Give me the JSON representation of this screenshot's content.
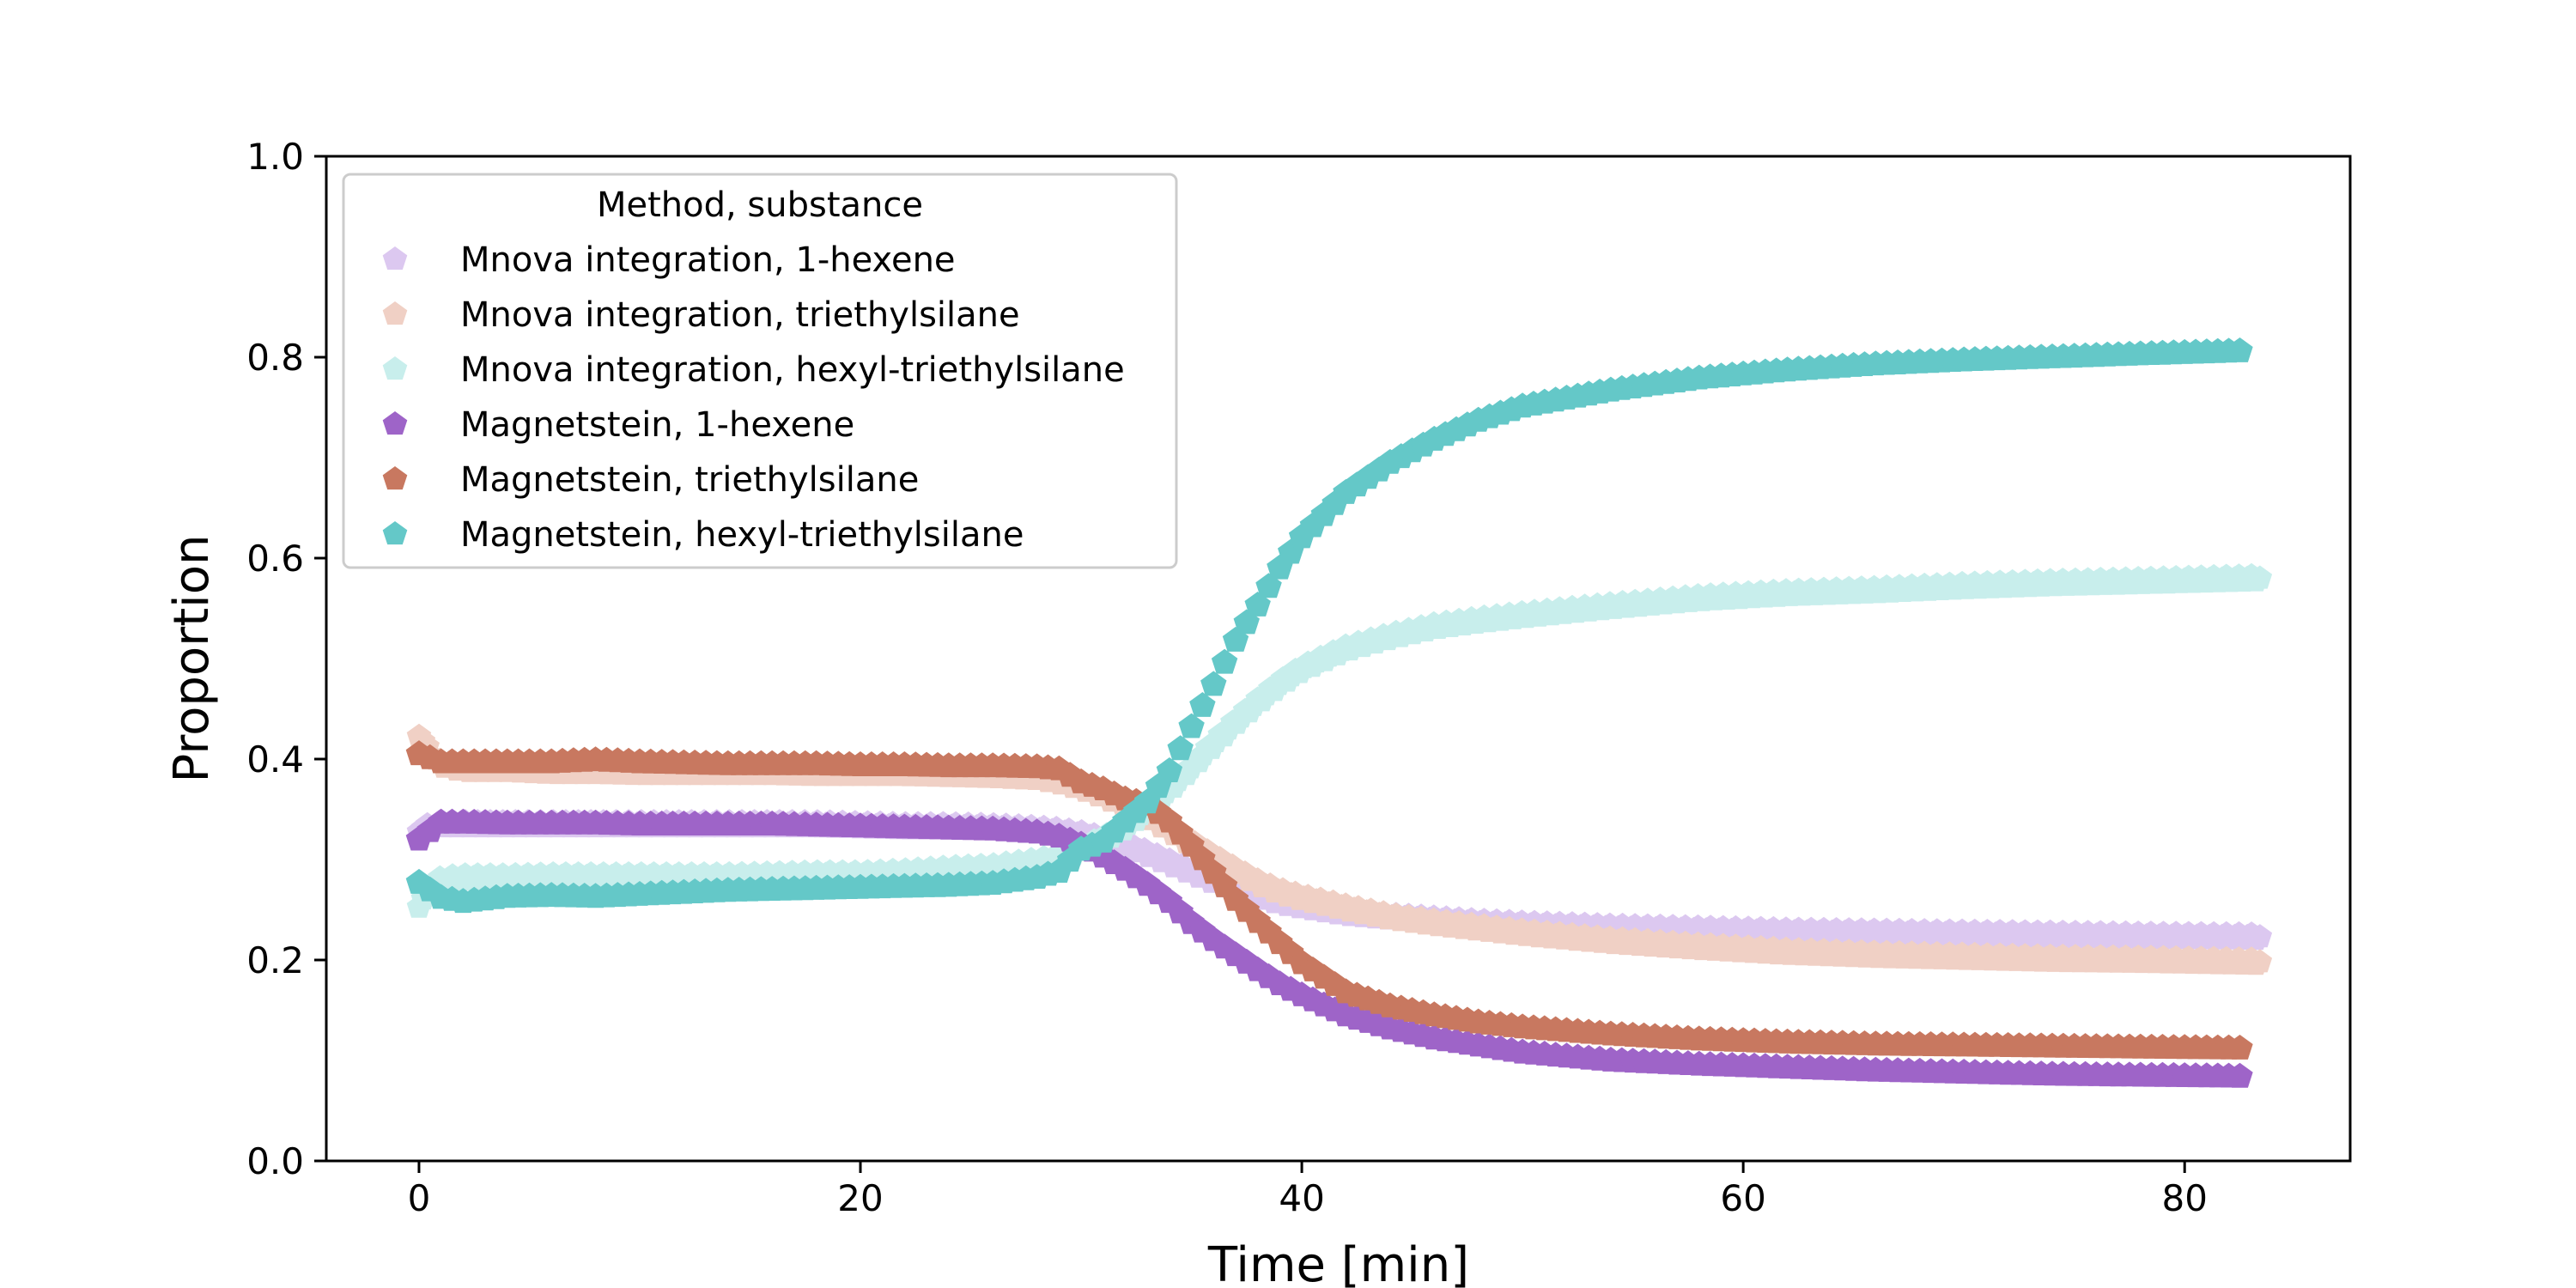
{
  "chart_data": {
    "type": "scatter",
    "title": "",
    "xlabel": "Time [min]",
    "ylabel": "Proportion",
    "xlim": [
      -4.2,
      87.5
    ],
    "ylim": [
      0.0,
      1.0
    ],
    "xticks": [
      0,
      20,
      40,
      60,
      80
    ],
    "yticks": [
      0.0,
      0.2,
      0.4,
      0.6,
      0.8,
      1.0
    ],
    "xtick_labels": [
      "0",
      "20",
      "40",
      "60",
      "80"
    ],
    "ytick_labels": [
      "0.0",
      "0.2",
      "0.4",
      "0.6",
      "0.8",
      "1.0"
    ],
    "grid": false,
    "legend": {
      "title": "Method, substance",
      "placement": "top-left"
    },
    "series": [
      {
        "name": "Mnova integration, 1-hexene",
        "color": "#dcc8f0",
        "marker": "pentagon",
        "density": "dense",
        "x": [
          0,
          1,
          2,
          4,
          6,
          8,
          10,
          12,
          14,
          16,
          18,
          20,
          22,
          24,
          26,
          28,
          29,
          30,
          31,
          32,
          33,
          34,
          35,
          36,
          37,
          38,
          39,
          40,
          42,
          44,
          46,
          48,
          50,
          54,
          58,
          62,
          66,
          70,
          74,
          78,
          83.5
        ],
        "y": [
          0.33,
          0.335,
          0.335,
          0.335,
          0.335,
          0.335,
          0.335,
          0.335,
          0.335,
          0.335,
          0.335,
          0.334,
          0.333,
          0.333,
          0.332,
          0.33,
          0.328,
          0.325,
          0.32,
          0.314,
          0.306,
          0.297,
          0.288,
          0.279,
          0.271,
          0.264,
          0.258,
          0.254,
          0.247,
          0.243,
          0.24,
          0.237,
          0.235,
          0.232,
          0.23,
          0.228,
          0.227,
          0.226,
          0.225,
          0.224,
          0.223
        ]
      },
      {
        "name": "Mnova integration, triethylsilane",
        "color": "#f0d0c5",
        "marker": "pentagon",
        "density": "dense",
        "x": [
          0,
          0.5,
          1,
          2,
          4,
          6,
          8,
          10,
          12,
          14,
          16,
          18,
          20,
          22,
          24,
          26,
          28,
          29,
          30,
          31,
          32,
          33,
          34,
          35,
          36,
          37,
          38,
          39,
          40,
          42,
          44,
          46,
          48,
          50,
          54,
          58,
          62,
          66,
          70,
          74,
          78,
          83.5
        ],
        "y": [
          0.425,
          0.405,
          0.395,
          0.39,
          0.39,
          0.388,
          0.388,
          0.387,
          0.387,
          0.387,
          0.387,
          0.386,
          0.386,
          0.386,
          0.385,
          0.384,
          0.382,
          0.378,
          0.372,
          0.364,
          0.354,
          0.343,
          0.33,
          0.316,
          0.302,
          0.289,
          0.277,
          0.268,
          0.262,
          0.252,
          0.243,
          0.237,
          0.232,
          0.227,
          0.219,
          0.213,
          0.208,
          0.205,
          0.203,
          0.201,
          0.2,
          0.198
        ]
      },
      {
        "name": "Mnova integration, hexyl-triethylsilane",
        "color": "#c8eeec",
        "marker": "pentagon",
        "density": "dense",
        "x": [
          0,
          0.5,
          1,
          2,
          4,
          6,
          8,
          10,
          12,
          14,
          16,
          18,
          20,
          22,
          24,
          26,
          28,
          29,
          30,
          31,
          32,
          33,
          34,
          35,
          36,
          37,
          38,
          39,
          40,
          42,
          44,
          46,
          48,
          50,
          54,
          58,
          62,
          66,
          70,
          74,
          78,
          83.5
        ],
        "y": [
          0.255,
          0.27,
          0.28,
          0.282,
          0.282,
          0.283,
          0.283,
          0.283,
          0.283,
          0.283,
          0.284,
          0.285,
          0.285,
          0.287,
          0.29,
          0.292,
          0.298,
          0.302,
          0.31,
          0.32,
          0.333,
          0.35,
          0.37,
          0.392,
          0.415,
          0.437,
          0.457,
          0.475,
          0.49,
          0.51,
          0.522,
          0.532,
          0.538,
          0.543,
          0.552,
          0.56,
          0.565,
          0.568,
          0.572,
          0.575,
          0.577,
          0.58
        ]
      },
      {
        "name": "Magnetstein, 1-hexene",
        "color": "#9e64c8",
        "marker": "pentagon",
        "density": "sparse",
        "x": [
          0,
          1,
          2,
          4,
          6,
          8,
          10,
          12,
          14,
          16,
          18,
          20,
          22,
          24,
          26,
          28,
          29,
          30,
          31,
          32,
          33,
          34,
          35,
          36,
          37,
          38,
          39,
          40,
          42,
          44,
          46,
          48,
          50,
          54,
          58,
          62,
          66,
          70,
          74,
          78,
          82.5
        ],
        "y": [
          0.32,
          0.337,
          0.337,
          0.336,
          0.336,
          0.336,
          0.335,
          0.335,
          0.335,
          0.335,
          0.334,
          0.333,
          0.332,
          0.331,
          0.33,
          0.327,
          0.323,
          0.315,
          0.303,
          0.29,
          0.275,
          0.258,
          0.237,
          0.22,
          0.205,
          0.19,
          0.176,
          0.165,
          0.145,
          0.132,
          0.122,
          0.115,
          0.108,
          0.1,
          0.096,
          0.093,
          0.09,
          0.088,
          0.086,
          0.085,
          0.084
        ]
      },
      {
        "name": "Magnetstein, triethylsilane",
        "color": "#c87860",
        "marker": "pentagon",
        "density": "sparse",
        "x": [
          0,
          1,
          2,
          4,
          6,
          8,
          10,
          12,
          14,
          16,
          18,
          20,
          22,
          24,
          26,
          28,
          29,
          30,
          31,
          32,
          33,
          34,
          35,
          36,
          37,
          38,
          39,
          40,
          42,
          44,
          46,
          48,
          50,
          54,
          58,
          62,
          66,
          70,
          74,
          78,
          82.5
        ],
        "y": [
          0.405,
          0.397,
          0.397,
          0.397,
          0.397,
          0.399,
          0.397,
          0.396,
          0.395,
          0.395,
          0.395,
          0.394,
          0.394,
          0.393,
          0.393,
          0.392,
          0.39,
          0.377,
          0.37,
          0.36,
          0.355,
          0.338,
          0.314,
          0.287,
          0.26,
          0.238,
          0.217,
          0.197,
          0.168,
          0.154,
          0.145,
          0.138,
          0.133,
          0.126,
          0.121,
          0.118,
          0.116,
          0.115,
          0.114,
          0.113,
          0.112
        ]
      },
      {
        "name": "Magnetstein, hexyl-triethylsilane",
        "color": "#64c8c8",
        "marker": "pentagon",
        "density": "sparse",
        "x": [
          0,
          1,
          2,
          4,
          6,
          8,
          10,
          12,
          14,
          16,
          18,
          20,
          22,
          24,
          26,
          28,
          29,
          30,
          31,
          32,
          33,
          34,
          35,
          36,
          37,
          38,
          39,
          40,
          42,
          44,
          46,
          48,
          50,
          54,
          58,
          62,
          66,
          70,
          74,
          78,
          82.5
        ],
        "y": [
          0.277,
          0.262,
          0.258,
          0.263,
          0.264,
          0.263,
          0.265,
          0.267,
          0.269,
          0.27,
          0.271,
          0.272,
          0.273,
          0.274,
          0.276,
          0.282,
          0.288,
          0.31,
          0.318,
          0.338,
          0.357,
          0.388,
          0.432,
          0.474,
          0.518,
          0.553,
          0.59,
          0.621,
          0.665,
          0.695,
          0.718,
          0.737,
          0.751,
          0.767,
          0.779,
          0.787,
          0.793,
          0.797,
          0.8,
          0.803,
          0.806
        ]
      }
    ]
  }
}
